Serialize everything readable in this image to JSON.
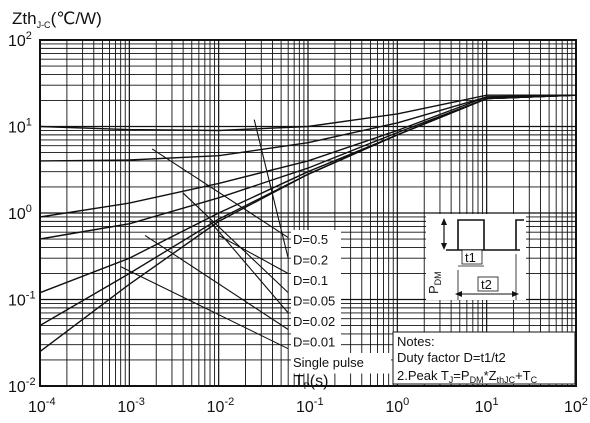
{
  "chart_data": {
    "type": "line",
    "xscale": "log",
    "yscale": "log",
    "xlim": [
      0.0001,
      100
    ],
    "ylim": [
      0.01,
      100
    ],
    "y_axis_label": {
      "main": "Zth",
      "sub": "J-C",
      "unit": "(℃/W)"
    },
    "x_axis_label": {
      "main": "T",
      "sub": "P",
      "unit": "(s)"
    },
    "x_ticks": [
      {
        "value": 0.0001,
        "base": "10",
        "exp": "-4"
      },
      {
        "value": 0.001,
        "base": "10",
        "exp": "-3"
      },
      {
        "value": 0.01,
        "base": "10",
        "exp": "-2"
      },
      {
        "value": 0.1,
        "base": "10",
        "exp": "-1"
      },
      {
        "value": 1,
        "base": "10",
        "exp": "0"
      },
      {
        "value": 10,
        "base": "10",
        "exp": "1"
      },
      {
        "value": 100,
        "base": "10",
        "exp": "2"
      }
    ],
    "y_ticks": [
      {
        "value": 0.01,
        "base": "10",
        "exp": "-2"
      },
      {
        "value": 0.1,
        "base": "10",
        "exp": "-1"
      },
      {
        "value": 1,
        "base": "10",
        "exp": "0"
      },
      {
        "value": 10,
        "base": "10",
        "exp": "1"
      },
      {
        "value": 100,
        "base": "10",
        "exp": "2"
      }
    ],
    "grid": true,
    "series": [
      {
        "name": "D=0.5",
        "points": [
          [
            0.0001,
            10
          ],
          [
            0.001,
            9.2
          ],
          [
            0.01,
            9.0
          ],
          [
            0.1,
            10.0
          ],
          [
            1,
            14
          ],
          [
            10,
            23
          ],
          [
            100,
            23
          ]
        ]
      },
      {
        "name": "D=0.2",
        "points": [
          [
            0.0001,
            4.0
          ],
          [
            0.001,
            4.1
          ],
          [
            0.01,
            4.6
          ],
          [
            0.1,
            6.5
          ],
          [
            1,
            11
          ],
          [
            10,
            22
          ],
          [
            100,
            23
          ]
        ]
      },
      {
        "name": "D=0.1",
        "points": [
          [
            0.0001,
            0.9
          ],
          [
            0.001,
            1.3
          ],
          [
            0.01,
            2.2
          ],
          [
            0.1,
            4.0
          ],
          [
            1,
            9.0
          ],
          [
            10,
            22
          ],
          [
            100,
            23
          ]
        ]
      },
      {
        "name": "D=0.05",
        "points": [
          [
            0.0001,
            0.5
          ],
          [
            0.001,
            0.75
          ],
          [
            0.01,
            1.5
          ],
          [
            0.1,
            3.3
          ],
          [
            1,
            8.5
          ],
          [
            10,
            21
          ],
          [
            100,
            23
          ]
        ]
      },
      {
        "name": "D=0.02",
        "points": [
          [
            0.0001,
            0.12
          ],
          [
            0.001,
            0.3
          ],
          [
            0.01,
            1.0
          ],
          [
            0.1,
            3.0
          ],
          [
            1,
            8.0
          ],
          [
            10,
            21
          ],
          [
            100,
            23
          ]
        ]
      },
      {
        "name": "D=0.01",
        "points": [
          [
            0.0001,
            0.05
          ],
          [
            0.001,
            0.2
          ],
          [
            0.01,
            0.85
          ],
          [
            0.1,
            2.8
          ],
          [
            1,
            8.0
          ],
          [
            10,
            21
          ],
          [
            100,
            23
          ]
        ]
      },
      {
        "name": "Single pulse",
        "points": [
          [
            0.0001,
            0.025
          ],
          [
            0.001,
            0.15
          ],
          [
            0.01,
            0.8
          ],
          [
            0.1,
            2.8
          ],
          [
            1,
            8.0
          ],
          [
            10,
            21
          ],
          [
            100,
            23
          ]
        ]
      }
    ],
    "leaders": [
      {
        "from": [
          0.0018,
          5.5
        ],
        "to": [
          0.06,
          0.52
        ]
      },
      {
        "from": [
          0.025,
          12
        ],
        "to": [
          0.06,
          0.3
        ]
      },
      {
        "from": [
          0.01,
          0.55
        ],
        "to": [
          0.06,
          0.2
        ]
      },
      {
        "from": [
          0.004,
          1.7
        ],
        "to": [
          0.06,
          0.12
        ]
      },
      {
        "from": [
          0.008,
          0.8
        ],
        "to": [
          0.06,
          0.07
        ]
      },
      {
        "from": [
          0.0015,
          0.55
        ],
        "to": [
          0.06,
          0.045
        ]
      },
      {
        "from": [
          0.0008,
          0.24
        ],
        "to": [
          0.06,
          0.027
        ]
      }
    ],
    "legend": {
      "entries": [
        "D=0.5",
        "D=0.2",
        "D=0.1",
        "D=0.05",
        "D=0.02",
        "D=0.01",
        "Single pulse"
      ],
      "placement": "lower-center"
    },
    "inset": {
      "pdm": {
        "main": "P",
        "sub": "DM"
      },
      "t1": "t1",
      "t2": "t2"
    },
    "notes": {
      "title": "Notes:",
      "line1": "Duty factor D=t1/t2",
      "line2": {
        "prefix": "2.Peak T",
        "s1": "J",
        "eq": "=P",
        "s2": "DM",
        "star": "*Z",
        "s3": "thJC",
        "plus": "+T",
        "s4": "C"
      }
    }
  }
}
